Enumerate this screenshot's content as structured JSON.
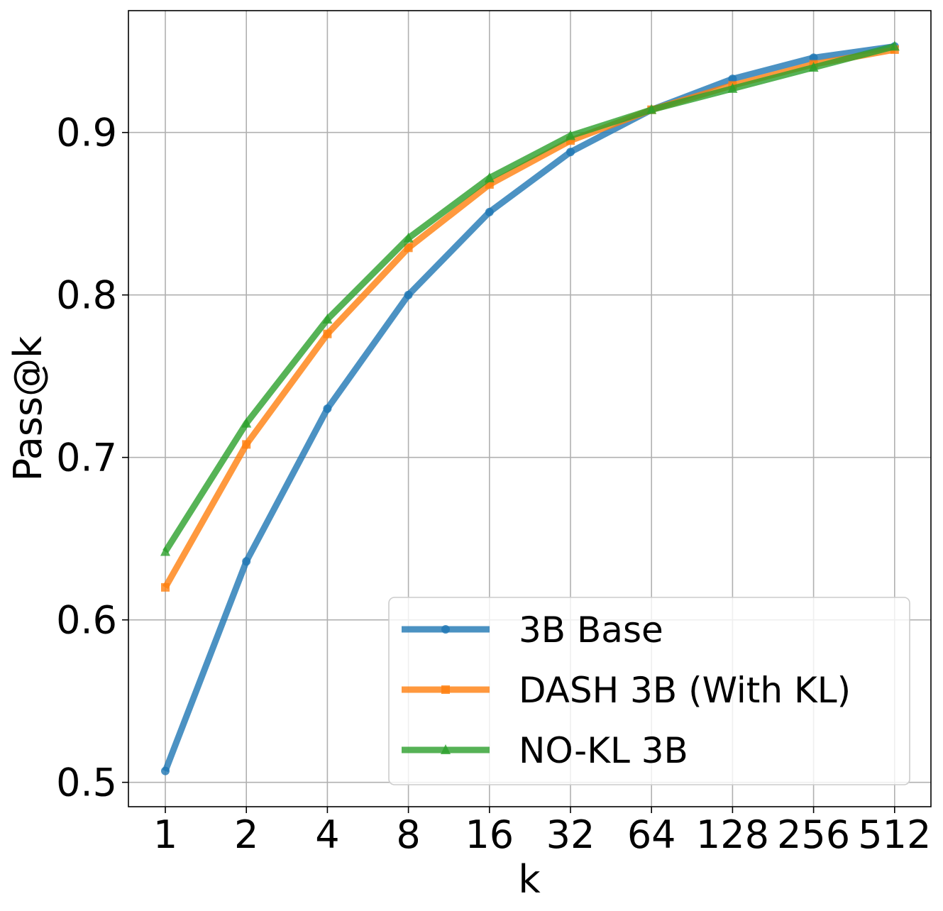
{
  "chart_data": {
    "type": "line",
    "title": "",
    "xlabel": "k",
    "ylabel": "Pass@k",
    "x_scale": "log2",
    "categories": [
      "1",
      "2",
      "4",
      "8",
      "16",
      "32",
      "64",
      "128",
      "256",
      "512"
    ],
    "x": [
      1,
      2,
      4,
      8,
      16,
      32,
      64,
      128,
      256,
      512
    ],
    "ylim": [
      0.485,
      0.975
    ],
    "yticks": [
      0.5,
      0.6,
      0.7,
      0.8,
      0.9
    ],
    "ytick_labels": [
      "0.5",
      "0.6",
      "0.7",
      "0.8",
      "0.9"
    ],
    "grid": true,
    "legend_position": "lower-right",
    "series": [
      {
        "name": "3B Base",
        "color": "#1f77b4",
        "marker": "circle",
        "values": [
          0.507,
          0.636,
          0.73,
          0.8,
          0.851,
          0.888,
          0.914,
          0.933,
          0.946,
          0.953
        ]
      },
      {
        "name": "DASH 3B (With KL)",
        "color": "#ff7f0e",
        "marker": "square",
        "values": [
          0.62,
          0.708,
          0.776,
          0.829,
          0.868,
          0.895,
          0.914,
          0.929,
          0.942,
          0.951
        ]
      },
      {
        "name": "NO-KL 3B",
        "color": "#2ca02c",
        "marker": "triangle",
        "values": [
          0.642,
          0.721,
          0.785,
          0.835,
          0.872,
          0.898,
          0.914,
          0.927,
          0.94,
          0.953
        ]
      }
    ]
  }
}
